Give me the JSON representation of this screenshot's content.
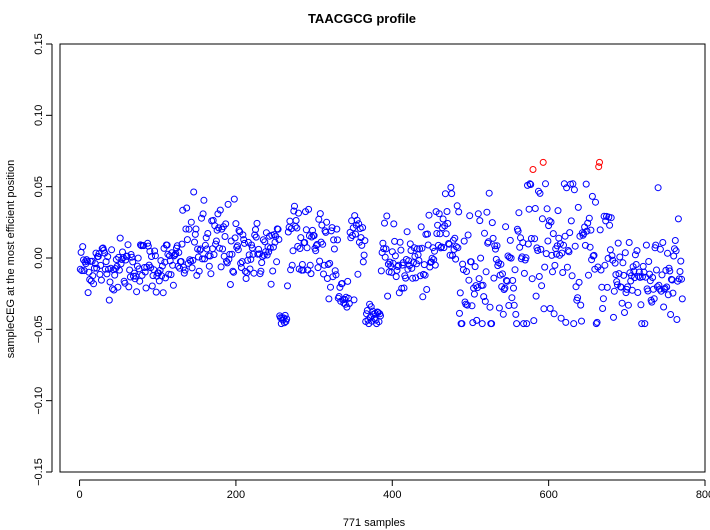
{
  "chart_data": {
    "type": "scatter",
    "title": "TAACGCG profile",
    "xlabel": "771 samples",
    "ylabel": "sampleCEG at the most efficient position",
    "xlim": [
      -25,
      800
    ],
    "ylim": [
      -0.15,
      0.15
    ],
    "x_ticks": [
      0,
      200,
      400,
      600,
      800
    ],
    "x_tick_labels": [
      "0",
      "200",
      "400",
      "600",
      "800"
    ],
    "y_ticks": [
      -0.15,
      -0.1,
      -0.05,
      0.0,
      0.05,
      0.1,
      0.15
    ],
    "y_tick_labels": [
      "−0.15",
      "−0.10",
      "−0.05",
      "0.00",
      "0.05",
      "0.10",
      "0.15"
    ],
    "grid": false,
    "legend": "none",
    "colors": {
      "main": "#0000ff",
      "highlight": "#ff0000"
    },
    "n_points": 771,
    "highlighted_points": [
      {
        "x": 580,
        "y": 0.062
      },
      {
        "x": 593,
        "y": 0.067
      },
      {
        "x": 664,
        "y": 0.064
      },
      {
        "x": 665,
        "y": 0.067
      }
    ],
    "segments": [
      {
        "from": 1,
        "to": 130,
        "mean": -0.005,
        "spread": 0.011
      },
      {
        "from": 131,
        "to": 200,
        "mean": 0.008,
        "spread": 0.018
      },
      {
        "from": 201,
        "to": 255,
        "mean": 0.005,
        "spread": 0.012
      },
      {
        "from": 256,
        "to": 265,
        "mean": -0.043,
        "spread": 0.003
      },
      {
        "from": 266,
        "to": 330,
        "mean": 0.012,
        "spread": 0.022
      },
      {
        "from": 331,
        "to": 345,
        "mean": -0.028,
        "spread": 0.008
      },
      {
        "from": 346,
        "to": 365,
        "mean": 0.015,
        "spread": 0.015
      },
      {
        "from": 366,
        "to": 385,
        "mean": -0.04,
        "spread": 0.004
      },
      {
        "from": 386,
        "to": 455,
        "mean": -0.003,
        "spread": 0.014
      },
      {
        "from": 456,
        "to": 485,
        "mean": 0.02,
        "spread": 0.017
      },
      {
        "from": 486,
        "to": 560,
        "mean": -0.01,
        "spread": 0.028
      },
      {
        "from": 561,
        "to": 600,
        "mean": 0.01,
        "spread": 0.03
      },
      {
        "from": 601,
        "to": 680,
        "mean": 0.002,
        "spread": 0.03
      },
      {
        "from": 681,
        "to": 771,
        "mean": -0.012,
        "spread": 0.022
      }
    ]
  }
}
